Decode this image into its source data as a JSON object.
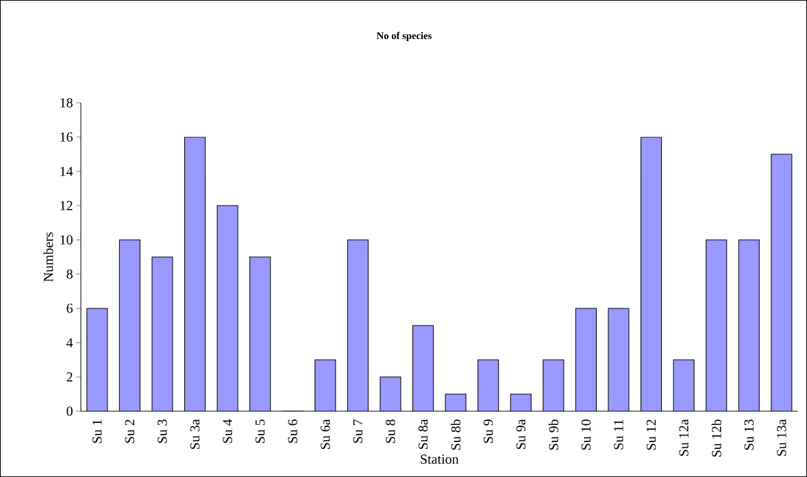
{
  "chart_data": {
    "type": "bar",
    "title": "No of species",
    "xlabel": "Station",
    "ylabel": "Numbers",
    "categories": [
      "Su 1",
      "Su 2",
      "Su 3",
      "Su 3a",
      "Su 4",
      "Su 5",
      "Su 6",
      "Su 6a",
      "Su 7",
      "Su 8",
      "Su 8a",
      "Su 8b",
      "Su 9",
      "Su 9a",
      "Su 9b",
      "Su 10",
      "Su 11",
      "Su 12",
      "Su 12a",
      "Su 12b",
      "Su 13",
      "Su 13a"
    ],
    "values": [
      6,
      10,
      9,
      16,
      12,
      9,
      0,
      3,
      10,
      2,
      5,
      1,
      3,
      1,
      3,
      6,
      6,
      16,
      3,
      10,
      10,
      15
    ],
    "color": "#9999ff",
    "ylim": [
      0,
      18
    ],
    "yticks": [
      0,
      2,
      4,
      6,
      8,
      10,
      12,
      14,
      16,
      18
    ],
    "grid": false
  }
}
